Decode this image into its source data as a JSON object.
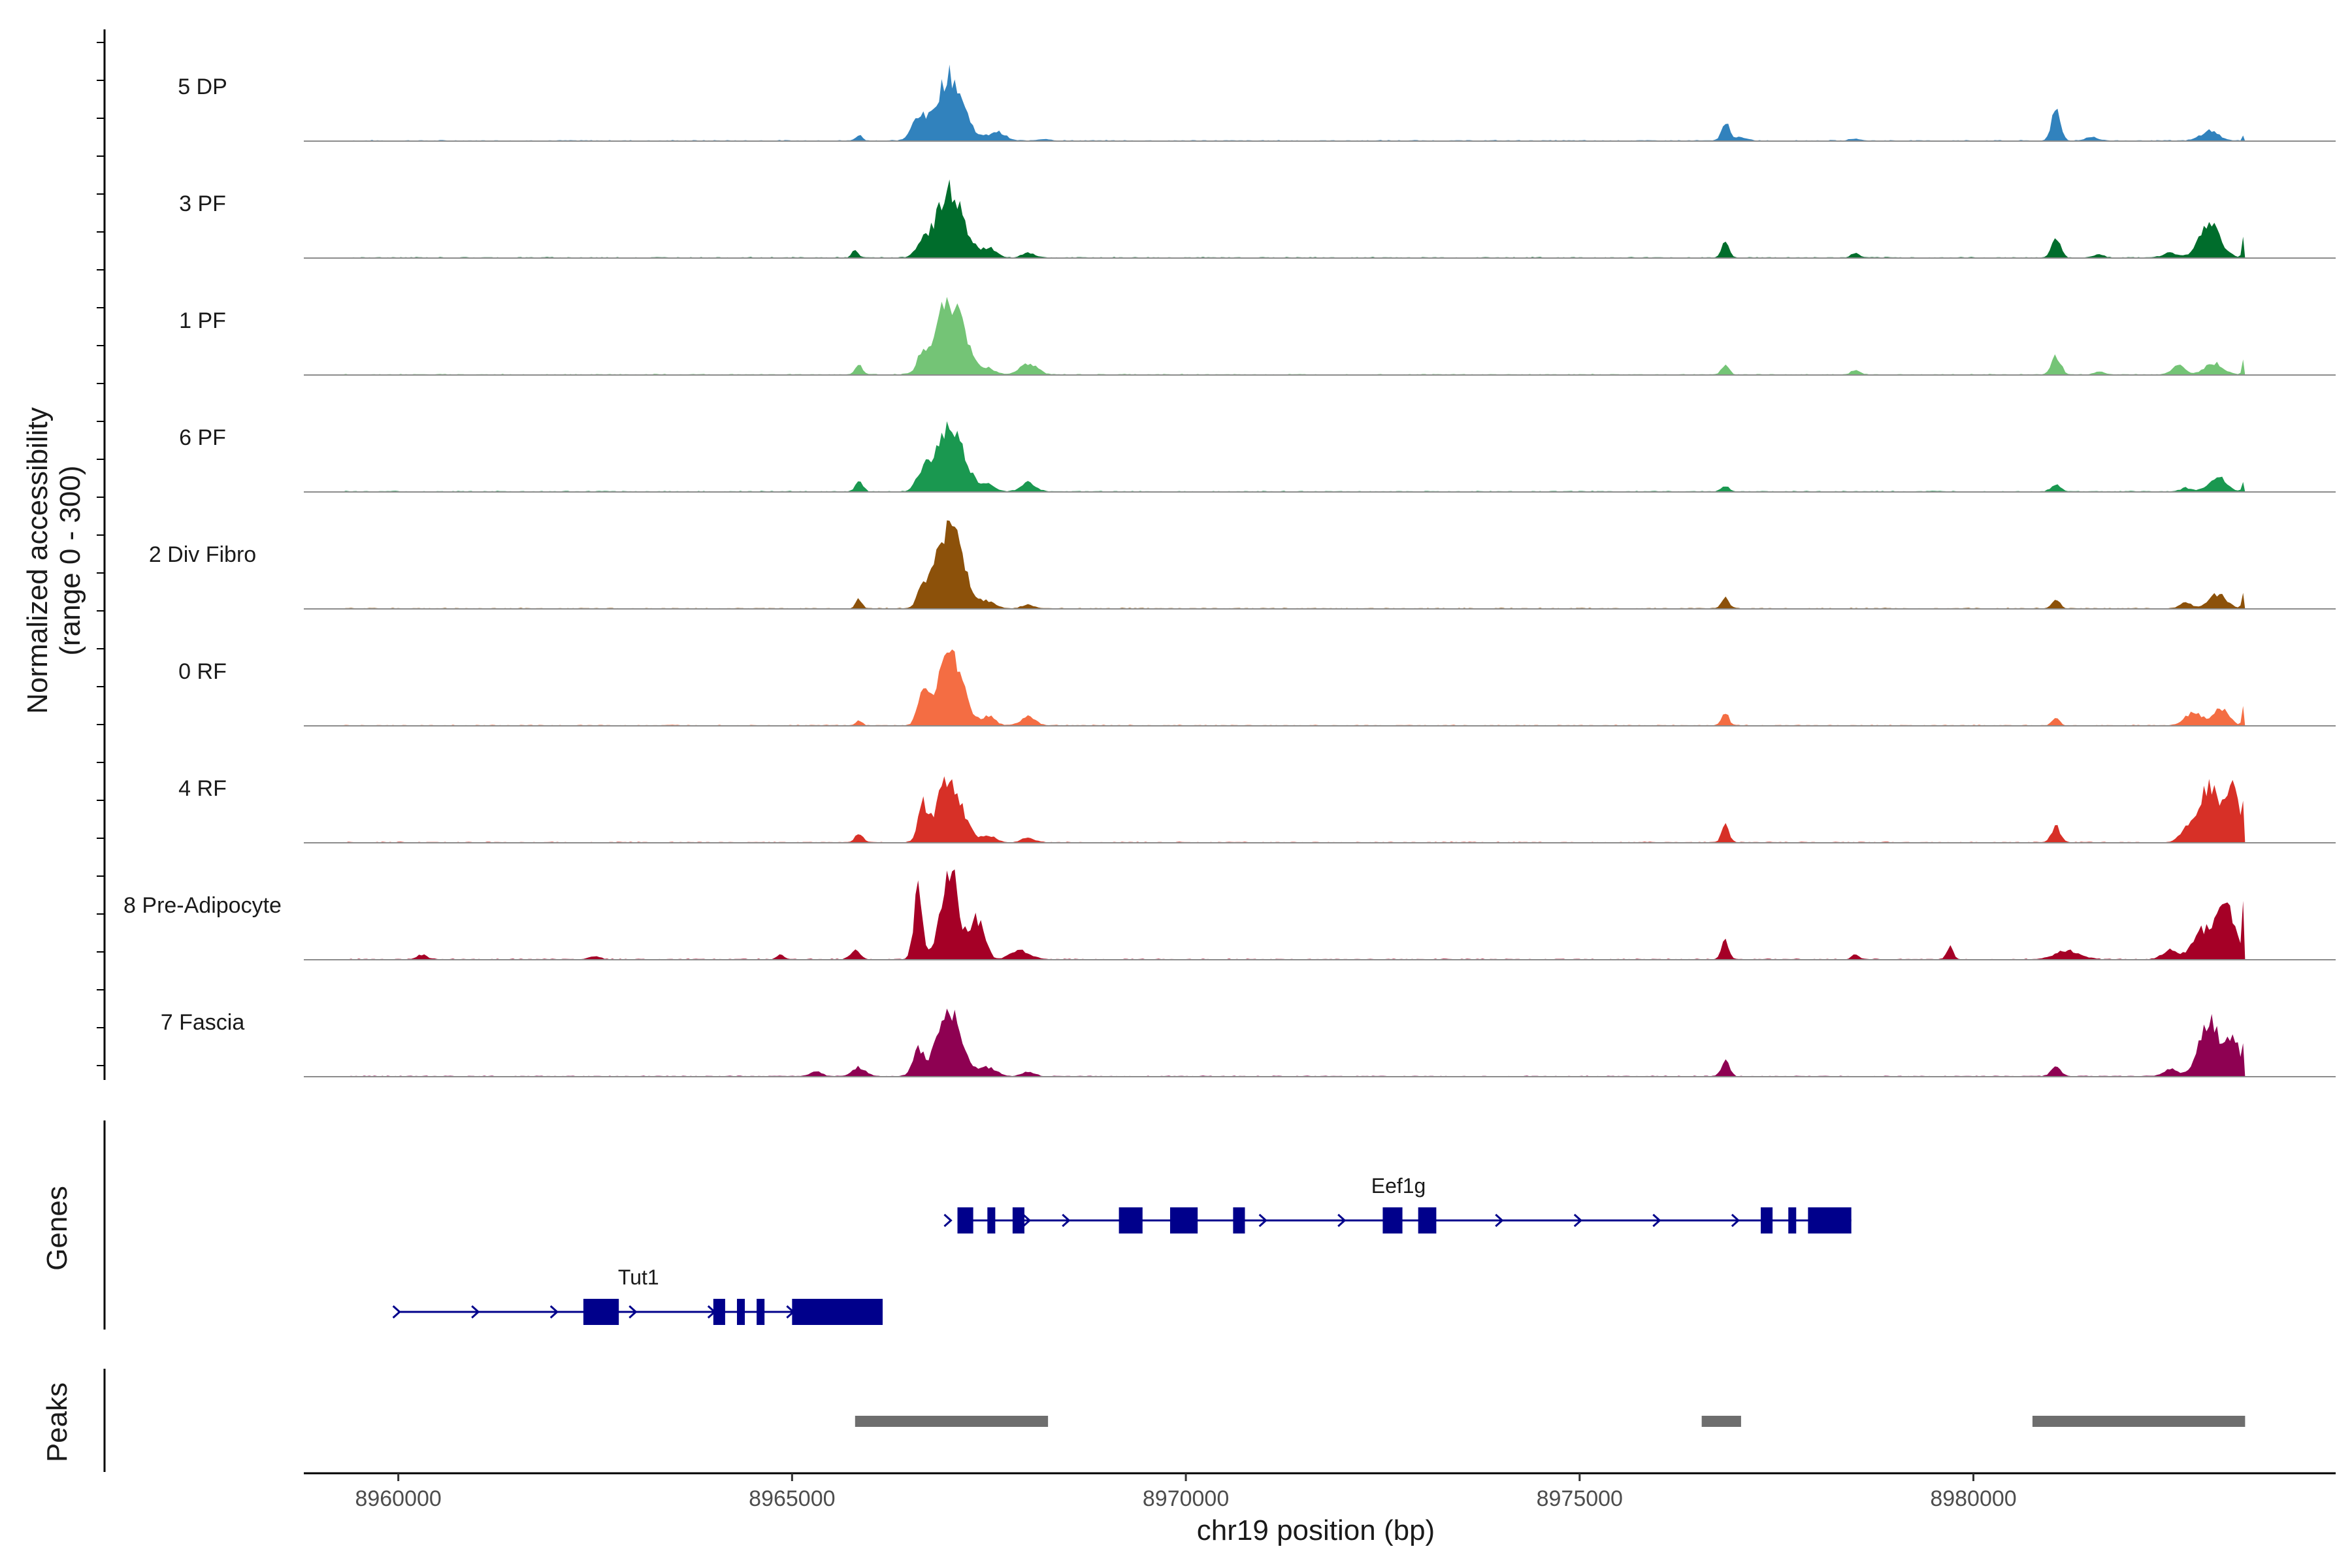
{
  "chart_data": {
    "type": "area",
    "chromosome": "chr19",
    "xlabel": "chr19 position (bp)",
    "ylabel_line1": "Normalized accessibility",
    "ylabel_line2": "(range 0 - 300)",
    "ylim": [
      0,
      300
    ],
    "xlim": [
      8958800,
      8984600
    ],
    "x_ticks": [
      8960000,
      8965000,
      8970000,
      8975000,
      8980000
    ],
    "x_tick_labels": [
      "8960000",
      "8965000",
      "8970000",
      "8975000",
      "8980000"
    ],
    "coverage_end": 8983450,
    "track_panels": [
      {
        "name": "Genes",
        "label": "Genes"
      },
      {
        "name": "Peaks",
        "label": "Peaks"
      }
    ],
    "series": [
      {
        "name": "5 DP",
        "color": "#3182BD",
        "peaks": [
          [
            8965850,
            25,
            40
          ],
          [
            8966600,
            100,
            80
          ],
          [
            8967000,
            290,
            170
          ],
          [
            8967600,
            40,
            100
          ],
          [
            8968200,
            8,
            80
          ],
          [
            8976850,
            85,
            45
          ],
          [
            8977000,
            15,
            100
          ],
          [
            8978500,
            10,
            60
          ],
          [
            8981050,
            150,
            55
          ],
          [
            8981500,
            15,
            80
          ],
          [
            8983000,
            45,
            110
          ],
          [
            8983450,
            40,
            20
          ]
        ]
      },
      {
        "name": "3 PF",
        "color": "#006D2C",
        "peaks": [
          [
            8965800,
            30,
            40
          ],
          [
            8966650,
            60,
            70
          ],
          [
            8967000,
            300,
            170
          ],
          [
            8967500,
            40,
            90
          ],
          [
            8968000,
            20,
            80
          ],
          [
            8976850,
            80,
            45
          ],
          [
            8978500,
            20,
            50
          ],
          [
            8981050,
            95,
            55
          ],
          [
            8981600,
            15,
            60
          ],
          [
            8982500,
            20,
            100
          ],
          [
            8983000,
            150,
            130
          ],
          [
            8983450,
            150,
            25
          ]
        ]
      },
      {
        "name": "1 PF",
        "color": "#74C476",
        "peaks": [
          [
            8965850,
            40,
            50
          ],
          [
            8966650,
            60,
            60
          ],
          [
            8967000,
            330,
            180
          ],
          [
            8967500,
            25,
            80
          ],
          [
            8968000,
            50,
            110
          ],
          [
            8976850,
            45,
            45
          ],
          [
            8978500,
            20,
            50
          ],
          [
            8981050,
            80,
            60
          ],
          [
            8981600,
            15,
            60
          ],
          [
            8982600,
            40,
            80
          ],
          [
            8983050,
            50,
            120
          ],
          [
            8983450,
            100,
            25
          ]
        ]
      },
      {
        "name": "6 PF",
        "color": "#1A9850",
        "peaks": [
          [
            8965850,
            40,
            50
          ],
          [
            8966650,
            70,
            70
          ],
          [
            8967000,
            280,
            180
          ],
          [
            8967500,
            30,
            80
          ],
          [
            8968000,
            40,
            90
          ],
          [
            8976850,
            25,
            50
          ],
          [
            8981050,
            30,
            60
          ],
          [
            8982700,
            15,
            80
          ],
          [
            8983100,
            70,
            110
          ],
          [
            8983450,
            80,
            25
          ]
        ]
      },
      {
        "name": "2 Div Fibro",
        "color": "#8C510A",
        "peaks": [
          [
            8965850,
            40,
            40
          ],
          [
            8966650,
            80,
            60
          ],
          [
            8967000,
            370,
            170
          ],
          [
            8967500,
            30,
            80
          ],
          [
            8968000,
            15,
            80
          ],
          [
            8976850,
            50,
            45
          ],
          [
            8981050,
            45,
            45
          ],
          [
            8982700,
            25,
            80
          ],
          [
            8983100,
            65,
            110
          ],
          [
            8983450,
            120,
            25
          ]
        ]
      },
      {
        "name": "0 RF",
        "color": "#F46D43",
        "peaks": [
          [
            8965850,
            20,
            40
          ],
          [
            8966650,
            130,
            60
          ],
          [
            8967000,
            320,
            160
          ],
          [
            8967500,
            40,
            80
          ],
          [
            8968000,
            40,
            90
          ],
          [
            8976850,
            55,
            45
          ],
          [
            8981050,
            40,
            45
          ],
          [
            8982800,
            60,
            110
          ],
          [
            8983150,
            80,
            90
          ],
          [
            8983450,
            150,
            25
          ]
        ]
      },
      {
        "name": "4 RF",
        "color": "#D73027",
        "peaks": [
          [
            8965850,
            40,
            50
          ],
          [
            8966650,
            160,
            55
          ],
          [
            8967000,
            280,
            160
          ],
          [
            8967500,
            30,
            80
          ],
          [
            8968000,
            20,
            80
          ],
          [
            8976850,
            80,
            45
          ],
          [
            8981050,
            70,
            55
          ],
          [
            8982700,
            60,
            80
          ],
          [
            8983000,
            260,
            130
          ],
          [
            8983300,
            220,
            80
          ],
          [
            8983450,
            160,
            25
          ]
        ]
      },
      {
        "name": "8 Pre-Adipocyte",
        "color": "#A50026",
        "peaks": [
          [
            8960300,
            20,
            60
          ],
          [
            8962500,
            15,
            60
          ],
          [
            8964850,
            25,
            40
          ],
          [
            8965800,
            40,
            60
          ],
          [
            8966600,
            300,
            55
          ],
          [
            8967000,
            420,
            110
          ],
          [
            8967350,
            180,
            90
          ],
          [
            8967900,
            40,
            120
          ],
          [
            8976850,
            90,
            45
          ],
          [
            8978500,
            25,
            40
          ],
          [
            8979700,
            60,
            40
          ],
          [
            8981200,
            40,
            150
          ],
          [
            8982500,
            40,
            100
          ],
          [
            8982900,
            120,
            120
          ],
          [
            8983200,
            230,
            120
          ],
          [
            8983450,
            320,
            25
          ]
        ]
      },
      {
        "name": "7 Fascia",
        "color": "#8E0152",
        "peaks": [
          [
            8965300,
            20,
            80
          ],
          [
            8965850,
            40,
            80
          ],
          [
            8966600,
            120,
            70
          ],
          [
            8967000,
            300,
            150
          ],
          [
            8967500,
            40,
            100
          ],
          [
            8968000,
            20,
            80
          ],
          [
            8976850,
            70,
            50
          ],
          [
            8981050,
            40,
            60
          ],
          [
            8982500,
            35,
            80
          ],
          [
            8983000,
            250,
            130
          ],
          [
            8983300,
            170,
            80
          ],
          [
            8983450,
            150,
            25
          ]
        ]
      }
    ],
    "genes": [
      {
        "name": "Eef1g",
        "color": "#00008B",
        "start": 8967100,
        "end": 8978450,
        "row": 1,
        "exons": [
          [
            8967100,
            8967300
          ],
          [
            8967480,
            8967580
          ],
          [
            8967800,
            8967950
          ],
          [
            8969150,
            8969450
          ],
          [
            8969800,
            8970150
          ],
          [
            8970600,
            8970750
          ],
          [
            8972500,
            8972750
          ],
          [
            8972950,
            8973180
          ],
          [
            8977300,
            8977450
          ],
          [
            8977650,
            8977750
          ],
          [
            8977900,
            8978450
          ]
        ],
        "arrows": [
          8967000,
          8968000,
          8968500,
          8971000,
          8972000,
          8974000,
          8975000,
          8976000,
          8977000
        ]
      },
      {
        "name": "Tut1",
        "color": "#00008B",
        "start": 8960000,
        "end": 8966150,
        "row": 2,
        "exons": [
          [
            8962350,
            8962800
          ],
          [
            8964000,
            8964150
          ],
          [
            8964300,
            8964400
          ],
          [
            8964550,
            8964650
          ],
          [
            8965000,
            8966150
          ]
        ],
        "arrows": [
          8960000,
          8961000,
          8962000,
          8963000,
          8964000,
          8965000
        ]
      }
    ],
    "peaks_regions": [
      [
        8965800,
        8968250
      ],
      [
        8976550,
        8977050
      ],
      [
        8980750,
        8983450
      ]
    ],
    "peak_color": "#6E6E6E"
  }
}
